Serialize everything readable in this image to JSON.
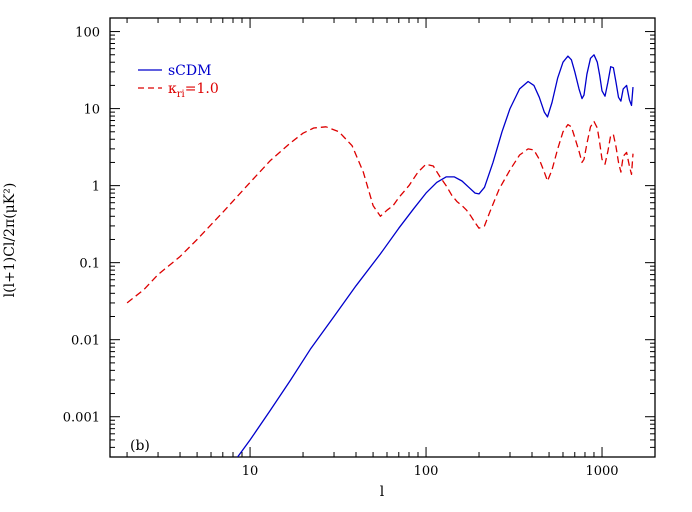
{
  "chart_data": {
    "type": "line",
    "xscale": "log",
    "yscale": "log",
    "xlim": [
      1.6,
      2000
    ],
    "ylim": [
      0.0003,
      150
    ],
    "xlabel": "l",
    "ylabel": "l(l+1)Cl/2π(μK²)",
    "panel_label": "(b)",
    "x_ticks": [
      {
        "value": 10,
        "label": "10"
      },
      {
        "value": 100,
        "label": "100"
      },
      {
        "value": 1000,
        "label": "1000"
      }
    ],
    "y_ticks": [
      {
        "value": 100,
        "label": "100"
      },
      {
        "value": 10,
        "label": "10"
      },
      {
        "value": 1,
        "label": "1"
      },
      {
        "value": 0.1,
        "label": "0.1"
      },
      {
        "value": 0.01,
        "label": "0.01"
      },
      {
        "value": 0.001,
        "label": "0.001"
      }
    ],
    "legend_position": "top-left",
    "series": [
      {
        "name": "sCDM",
        "legend": {
          "main": "sCDM",
          "sub": ""
        },
        "color": "#0000cc",
        "style": "solid",
        "x": [
          8.5,
          10,
          13,
          17,
          22,
          30,
          40,
          55,
          70,
          85,
          100,
          115,
          130,
          145,
          160,
          175,
          190,
          200,
          215,
          240,
          270,
          300,
          340,
          380,
          410,
          440,
          470,
          490,
          520,
          560,
          600,
          640,
          670,
          700,
          740,
          770,
          790,
          820,
          860,
          900,
          940,
          970,
          1000,
          1040,
          1080,
          1120,
          1160,
          1200,
          1240,
          1280,
          1320,
          1380,
          1430,
          1470,
          1500
        ],
        "y": [
          0.0003,
          0.0005,
          0.0012,
          0.003,
          0.0075,
          0.02,
          0.05,
          0.13,
          0.28,
          0.5,
          0.8,
          1.1,
          1.3,
          1.3,
          1.15,
          0.95,
          0.8,
          0.78,
          0.95,
          2.0,
          5.0,
          10.0,
          18.0,
          22.5,
          20.0,
          14.0,
          9.0,
          7.8,
          12.0,
          25.0,
          40.0,
          48.0,
          43.0,
          30.0,
          18.0,
          13.5,
          15.0,
          28.0,
          45.0,
          50.0,
          40.0,
          27.0,
          17.0,
          14.5,
          22.0,
          35.0,
          34.0,
          22.0,
          14.0,
          12.5,
          18.0,
          20.0,
          13.0,
          11.0,
          19.0
        ]
      },
      {
        "name": "κri=1.0",
        "legend": {
          "main": "κ",
          "sub": "ri",
          "suffix": "=1.0"
        },
        "color": "#dd0000",
        "style": "dashed",
        "x": [
          2,
          2.5,
          3,
          4,
          5,
          7,
          10,
          13,
          17,
          20,
          23,
          27,
          32,
          38,
          44,
          50,
          55,
          60,
          65,
          70,
          80,
          90,
          100,
          110,
          120,
          130,
          140,
          150,
          160,
          170,
          180,
          190,
          200,
          215,
          230,
          260,
          300,
          340,
          380,
          410,
          440,
          470,
          490,
          520,
          560,
          600,
          640,
          670,
          700,
          740,
          770,
          790,
          820,
          860,
          900,
          940,
          970,
          1000,
          1040,
          1080,
          1120,
          1160,
          1200,
          1240,
          1280,
          1320,
          1380,
          1430,
          1470,
          1500
        ],
        "y": [
          0.03,
          0.045,
          0.07,
          0.12,
          0.2,
          0.45,
          1.1,
          2.1,
          3.6,
          4.8,
          5.6,
          5.8,
          5.0,
          3.3,
          1.5,
          0.55,
          0.4,
          0.48,
          0.55,
          0.7,
          1.0,
          1.5,
          1.9,
          1.8,
          1.3,
          1.0,
          0.75,
          0.62,
          0.55,
          0.48,
          0.4,
          0.33,
          0.28,
          0.3,
          0.45,
          0.9,
          1.6,
          2.5,
          3.0,
          2.9,
          2.2,
          1.5,
          1.15,
          1.6,
          3.0,
          5.0,
          6.2,
          5.8,
          4.2,
          2.8,
          2.0,
          2.2,
          3.5,
          5.8,
          6.8,
          5.6,
          3.6,
          2.2,
          1.9,
          2.8,
          4.5,
          4.6,
          3.2,
          2.0,
          1.5,
          2.4,
          2.7,
          1.8,
          1.4,
          2.6
        ]
      }
    ]
  }
}
